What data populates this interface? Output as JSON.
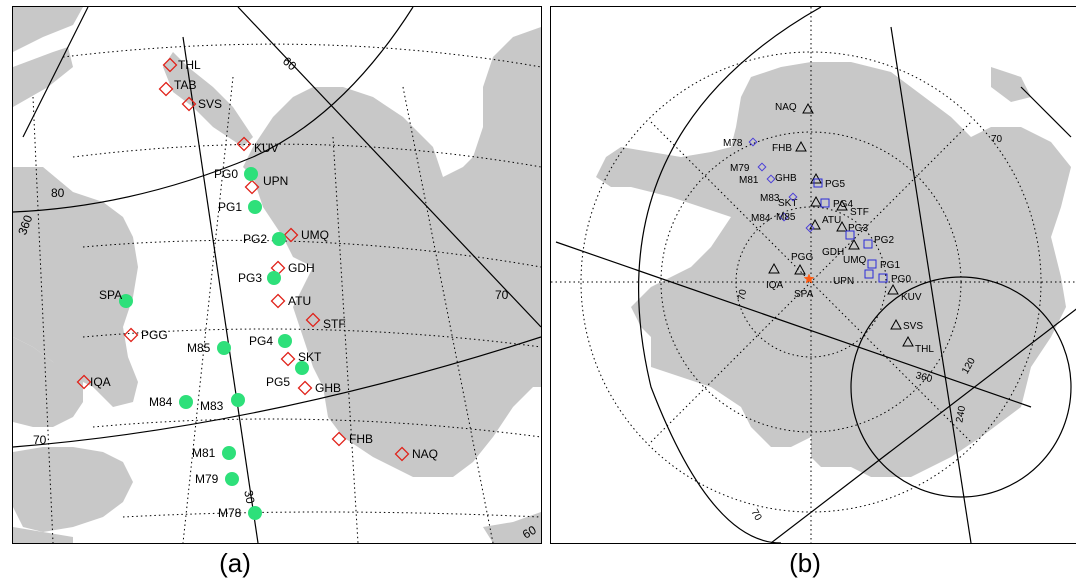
{
  "colors": {
    "land": "#c8c8c8",
    "diamond": "#e0231b",
    "circle": "#2ee07a",
    "square": "#2a2ad8",
    "small_diamond": "#4b3fd8",
    "star": "#ff5a10"
  },
  "panel_a": {
    "caption": "(a)",
    "grid_labels": {
      "lat80": "80",
      "lat70_left": "70",
      "lat70_right": "70",
      "lon360": "360",
      "lon60": "60",
      "lon30": "30",
      "lon60_bottom": "60"
    },
    "stations_diamond": [
      {
        "id": "THL"
      },
      {
        "id": "TAB"
      },
      {
        "id": "SVS"
      },
      {
        "id": "KUV"
      },
      {
        "id": "UPN"
      },
      {
        "id": "UMQ"
      },
      {
        "id": "GDH"
      },
      {
        "id": "ATU"
      },
      {
        "id": "STF"
      },
      {
        "id": "PGG"
      },
      {
        "id": "SKT"
      },
      {
        "id": "GHB"
      },
      {
        "id": "IQA"
      },
      {
        "id": "FHB"
      },
      {
        "id": "NAQ"
      }
    ],
    "stations_circle": [
      {
        "id": "PG0"
      },
      {
        "id": "PG1"
      },
      {
        "id": "PG2"
      },
      {
        "id": "PG3"
      },
      {
        "id": "SPA"
      },
      {
        "id": "PG4"
      },
      {
        "id": "M85"
      },
      {
        "id": "PG5"
      },
      {
        "id": "M84"
      },
      {
        "id": "M83"
      },
      {
        "id": "M81"
      },
      {
        "id": "M79"
      },
      {
        "id": "M78"
      }
    ]
  },
  "panel_b": {
    "caption": "(b)",
    "grid_labels": {
      "lat70_right": "70",
      "lat70_left": "70",
      "lat70_bottom": "70",
      "lon360": "360",
      "lon120": "120",
      "lon240": "240"
    },
    "stations_triangle": [
      {
        "id": "NAQ"
      },
      {
        "id": "FHB"
      },
      {
        "id": "GHB"
      },
      {
        "id": "SKT"
      },
      {
        "id": "STF"
      },
      {
        "id": "ATU"
      },
      {
        "id": "PG3"
      },
      {
        "id": "GDH"
      },
      {
        "id": "IQA"
      },
      {
        "id": "PGG"
      },
      {
        "id": "KUV"
      },
      {
        "id": "SVS"
      },
      {
        "id": "THL"
      }
    ],
    "stations_small_diamond": [
      {
        "id": "M78"
      },
      {
        "id": "M79"
      },
      {
        "id": "M81"
      },
      {
        "id": "M83"
      },
      {
        "id": "M84"
      },
      {
        "id": "M85"
      }
    ],
    "stations_square": [
      {
        "id": "PG5"
      },
      {
        "id": "PG4"
      },
      {
        "id": "PG2"
      },
      {
        "id": "UMQ"
      },
      {
        "id": "PG1"
      },
      {
        "id": "UPN"
      },
      {
        "id": "PG0"
      }
    ],
    "stations_star": [
      {
        "id": "SPA"
      }
    ]
  }
}
